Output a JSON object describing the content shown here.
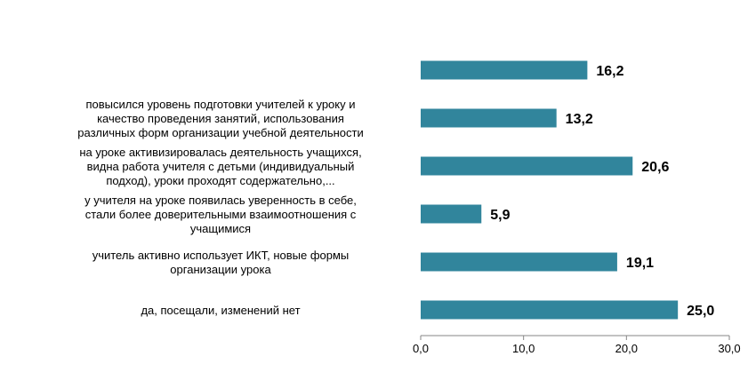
{
  "chart_data": {
    "type": "bar",
    "orientation": "horizontal",
    "categories": [
      [],
      [
        "повысился уровень  подготовки учителей к уроку и",
        "качество проведения  занятий, использования",
        "различных форм организации  учебной деятельности"
      ],
      [
        "на уроке активизировалась деятельность учащихся,",
        "видна работа учителя с детьми (индивидуальный",
        "подход), уроки проходят содержательно,..."
      ],
      [
        "у учителя на уроке появилась уверенность  в себе,",
        "стали более доверительными взаимоотношения  с",
        "учащимися"
      ],
      [
        "учитель активно использует ИКТ, новые формы",
        "организации урока"
      ],
      [
        "да, посещали, изменений нет"
      ]
    ],
    "values": [
      16.2,
      13.2,
      20.6,
      5.9,
      19.1,
      25.0
    ],
    "value_labels": [
      "16,2",
      "13,2",
      "20,6",
      "5,9",
      "19,1",
      "25,0"
    ],
    "xlim": [
      0,
      30
    ],
    "x_ticks": [
      "0,0",
      "10,0",
      "20,0",
      "30,0"
    ],
    "grid": false,
    "bar_color": "#31859C"
  }
}
